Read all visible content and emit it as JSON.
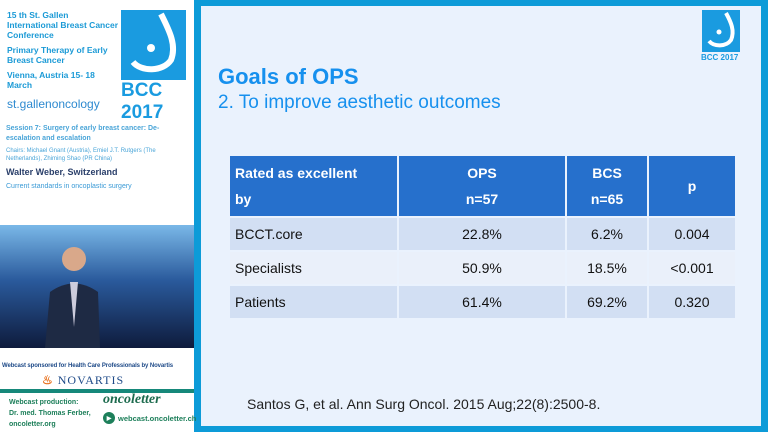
{
  "sidebar": {
    "conference": [
      "15 th St. Gallen International Breast Cancer Conference",
      "Primary Therapy of Early Breast Cancer",
      "Vienna, Austria 15- 18 March"
    ],
    "logo_text": "BCC 2017",
    "organizer": "st.gallenoncology",
    "session": "Session 7: Surgery of early breast cancer: De-escalation and escalation",
    "chairs": "Chairs: Michael Gnant (Austria), Emiel J.T. Rutgers (The Netherlands), Zhiming Shao (PR China)",
    "speaker": "Walter Weber, Switzerland",
    "topic": "Current standards in oncoplastic surgery",
    "sponsor": "Webcast sponsored for Health Care Professionals by Novartis",
    "sponsor_logo": "NOVARTIS",
    "production": [
      "Webcast production:",
      "Dr. med. Thomas Ferber,",
      "oncoletter.org"
    ],
    "oncoletter": "oncoletter",
    "webcast_link": "webcast.oncoletter.ch"
  },
  "slide": {
    "logo_text": "BCC 2017",
    "title": "Goals of OPS",
    "subtitle": "2. To improve aesthetic outcomes",
    "table": {
      "headers": [
        [
          "Rated as excellent",
          "by"
        ],
        [
          "OPS",
          "n=57"
        ],
        [
          "BCS",
          "n=65"
        ],
        [
          "p",
          ""
        ]
      ],
      "rows": [
        [
          "BCCT.core",
          "22.8%",
          "6.2%",
          "0.004"
        ],
        [
          "Specialists",
          "50.9%",
          "18.5%",
          "<0.001"
        ],
        [
          "Patients",
          "61.4%",
          "69.2%",
          "0.320"
        ]
      ]
    },
    "reference": "Santos G, et al. Ann Surg Oncol. 2015 Aug;22(8):2500-8."
  }
}
